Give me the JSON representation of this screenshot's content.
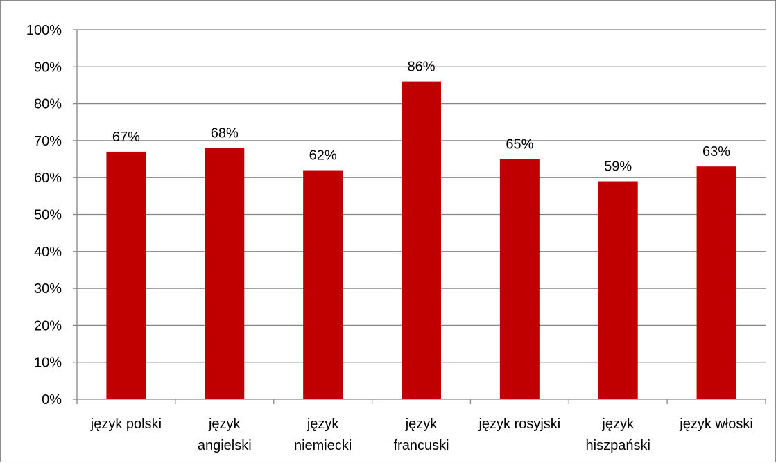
{
  "chart_data": {
    "type": "bar",
    "categories": [
      [
        "język polski"
      ],
      [
        "język",
        "angielski"
      ],
      [
        "język",
        "niemiecki"
      ],
      [
        "język",
        "francuski"
      ],
      [
        "język rosyjski"
      ],
      [
        "język",
        "hiszpański"
      ],
      [
        "język włoski"
      ]
    ],
    "values": [
      0.67,
      0.68,
      0.62,
      0.86,
      0.65,
      0.59,
      0.63
    ],
    "data_labels": [
      "67%",
      "68%",
      "62%",
      "86%",
      "65%",
      "59%",
      "63%"
    ],
    "y_ticks": [
      "0%",
      "10%",
      "20%",
      "30%",
      "40%",
      "50%",
      "60%",
      "70%",
      "80%",
      "90%",
      "100%"
    ],
    "ylim": [
      0,
      1
    ],
    "grid": true,
    "legend": false,
    "bar_color": "#c00000",
    "gridline_color": "#868686",
    "title": "",
    "xlabel": "",
    "ylabel": ""
  }
}
